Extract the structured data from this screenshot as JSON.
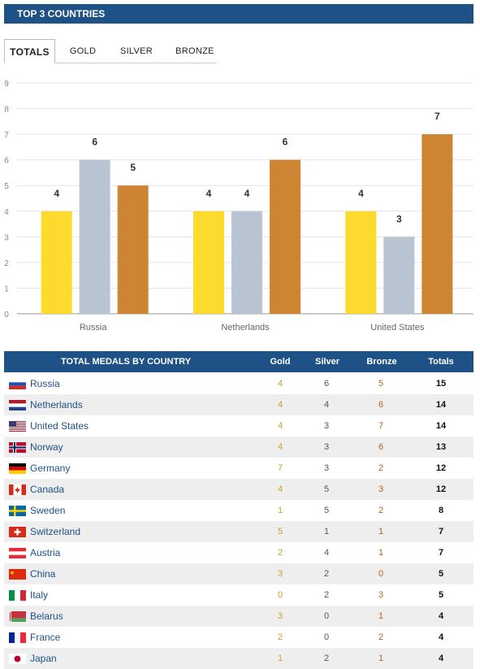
{
  "header": {
    "title": "TOP 3 COUNTRIES"
  },
  "tabs": [
    {
      "label": "TOTALS",
      "active": true
    },
    {
      "label": "GOLD",
      "active": false
    },
    {
      "label": "SILVER",
      "active": false
    },
    {
      "label": "BRONZE",
      "active": false
    }
  ],
  "chart_data": {
    "type": "bar",
    "categories": [
      "Russia",
      "Netherlands",
      "United States"
    ],
    "series": [
      {
        "name": "Gold",
        "values": [
          4,
          4,
          4
        ],
        "color": "#fcdb2e"
      },
      {
        "name": "Silver",
        "values": [
          6,
          4,
          3
        ],
        "color": "#b8c4d1"
      },
      {
        "name": "Bronze",
        "values": [
          5,
          6,
          7
        ],
        "color": "#cd8534"
      }
    ],
    "ylim": [
      0,
      9
    ],
    "yticks": [
      0,
      1,
      2,
      3,
      4,
      5,
      6,
      7,
      8,
      9
    ],
    "grid": true,
    "data_labels": true
  },
  "table": {
    "title": "TOTAL MEDALS BY COUNTRY",
    "columns": [
      "Gold",
      "Silver",
      "Bronze",
      "Totals"
    ],
    "rows": [
      {
        "country": "Russia",
        "flag": "russia-flag-icon",
        "gold": "4",
        "silver": "6",
        "bronze": "5",
        "total": "15"
      },
      {
        "country": "Netherlands",
        "flag": "netherlands-flag-icon",
        "gold": "4",
        "silver": "4",
        "bronze": "6",
        "total": "14"
      },
      {
        "country": "United States",
        "flag": "united-states-flag-icon",
        "gold": "4",
        "silver": "3",
        "bronze": "7",
        "total": "14"
      },
      {
        "country": "Norway",
        "flag": "norway-flag-icon",
        "gold": "4",
        "silver": "3",
        "bronze": "6",
        "total": "13"
      },
      {
        "country": "Germany",
        "flag": "germany-flag-icon",
        "gold": "7",
        "silver": "3",
        "bronze": "2",
        "total": "12"
      },
      {
        "country": "Canada",
        "flag": "canada-flag-icon",
        "gold": "4",
        "silver": "5",
        "bronze": "3",
        "total": "12"
      },
      {
        "country": "Sweden",
        "flag": "sweden-flag-icon",
        "gold": "1",
        "silver": "5",
        "bronze": "2",
        "total": "8"
      },
      {
        "country": "Switzerland",
        "flag": "switzerland-flag-icon",
        "gold": "5",
        "silver": "1",
        "bronze": "1",
        "total": "7"
      },
      {
        "country": "Austria",
        "flag": "austria-flag-icon",
        "gold": "2",
        "silver": "4",
        "bronze": "1",
        "total": "7"
      },
      {
        "country": "China",
        "flag": "china-flag-icon",
        "gold": "3",
        "silver": "2",
        "bronze": "0",
        "total": "5"
      },
      {
        "country": "Italy",
        "flag": "italy-flag-icon",
        "gold": "0",
        "silver": "2",
        "bronze": "3",
        "total": "5"
      },
      {
        "country": "Belarus",
        "flag": "belarus-flag-icon",
        "gold": "3",
        "silver": "0",
        "bronze": "1",
        "total": "4"
      },
      {
        "country": "France",
        "flag": "france-flag-icon",
        "gold": "2",
        "silver": "0",
        "bronze": "2",
        "total": "4"
      },
      {
        "country": "Japan",
        "flag": "japan-flag-icon",
        "gold": "1",
        "silver": "2",
        "bronze": "1",
        "total": "4"
      }
    ]
  }
}
